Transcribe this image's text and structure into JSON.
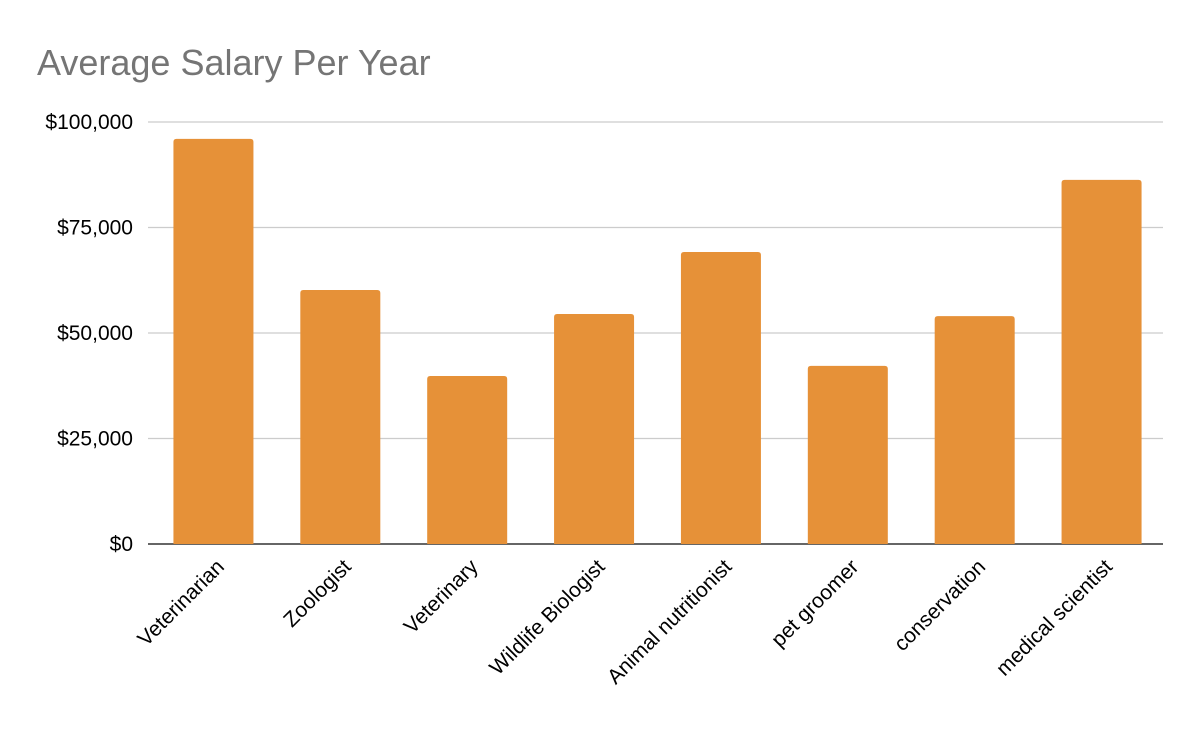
{
  "chart_data": {
    "type": "bar",
    "title": "Average Salary Per Year",
    "xlabel": "",
    "ylabel": "",
    "categories": [
      "Veterinarian",
      "Zoologist",
      "Veterinary",
      "Wildlife Biologist",
      "Animal nutritionist",
      "pet groomer",
      "conservation",
      "medical scientist"
    ],
    "values": [
      96000,
      60200,
      39800,
      54500,
      69200,
      42200,
      54000,
      86300
    ],
    "ylim": [
      0,
      100000
    ],
    "yticks": [
      0,
      25000,
      50000,
      75000,
      100000
    ],
    "ytick_labels": [
      "$0",
      "$25,000",
      "$50,000",
      "$75,000",
      "$100,000"
    ],
    "grid": true,
    "bar_color": "#e69138"
  }
}
